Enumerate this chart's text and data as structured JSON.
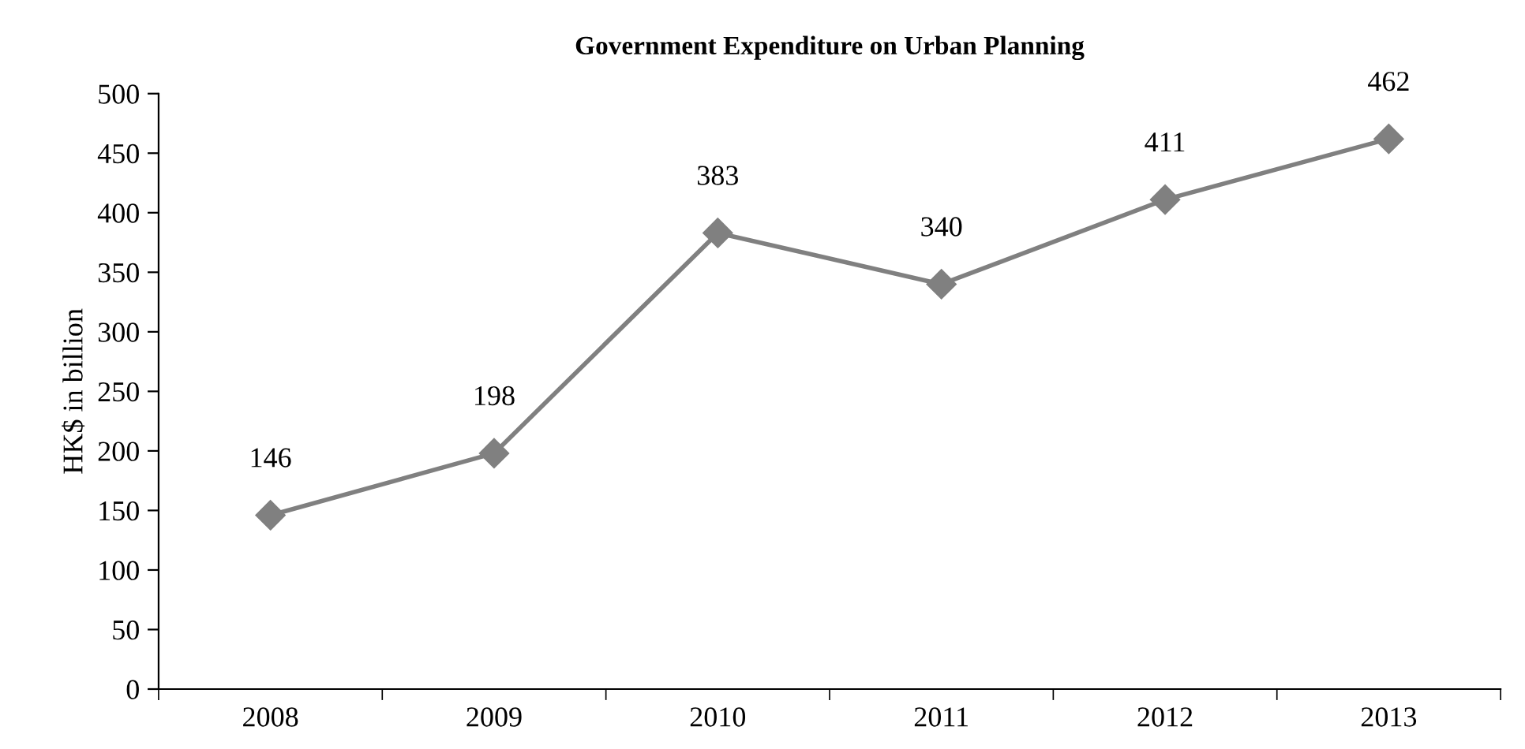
{
  "chart_data": {
    "type": "line",
    "title": "Government Expenditure on Urban Planning",
    "ylabel": "HK$ in billion",
    "categories": [
      "2008",
      "2009",
      "2010",
      "2011",
      "2012",
      "2013"
    ],
    "series": [
      {
        "color": "#808080",
        "values": [
          146,
          198,
          383,
          340,
          411,
          462
        ]
      }
    ],
    "ylim": [
      0,
      500
    ],
    "yticks": [
      0,
      50,
      100,
      150,
      200,
      250,
      300,
      350,
      400,
      450,
      500
    ],
    "marker": "diamond",
    "line_style": "solid",
    "data_labels": true,
    "grid": false,
    "legend": false
  }
}
